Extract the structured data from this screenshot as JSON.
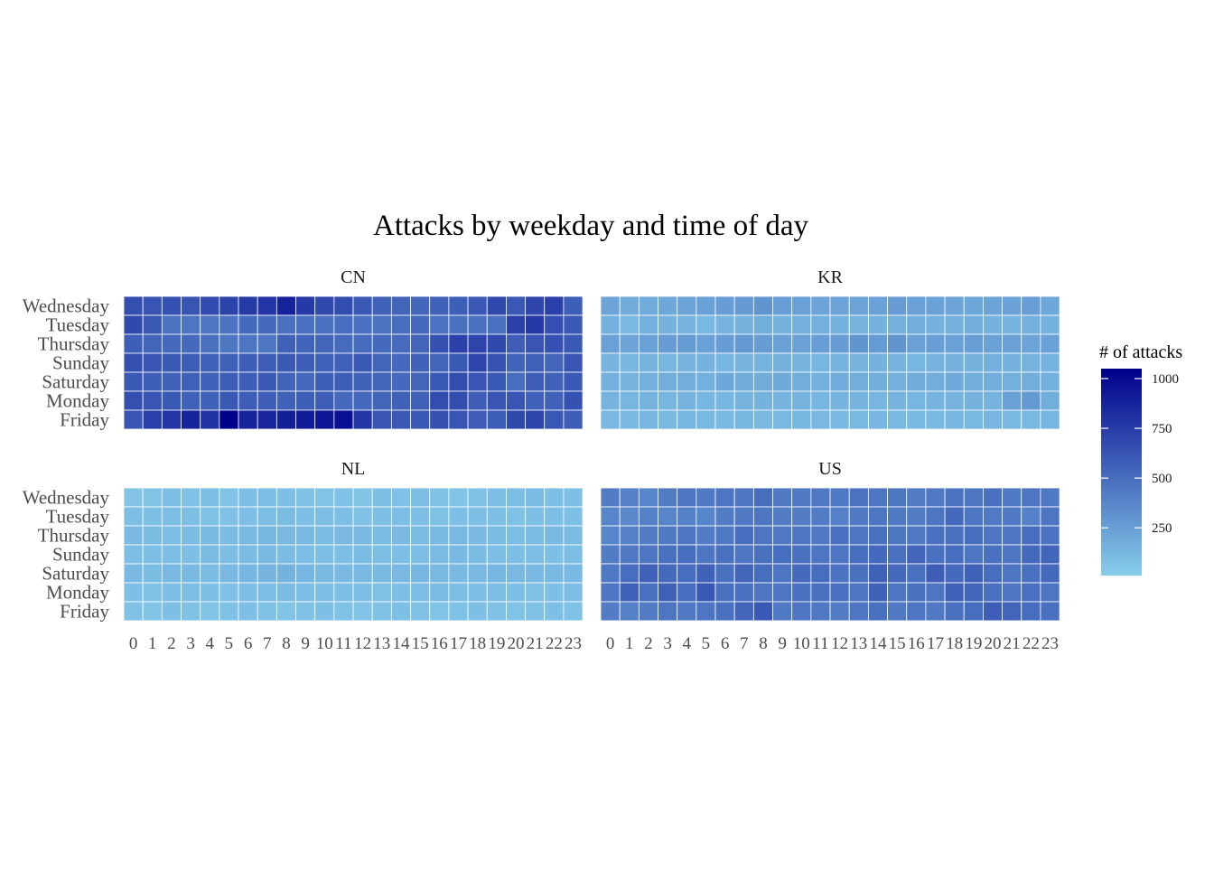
{
  "chart_data": {
    "type": "heatmap",
    "title": "Attacks by weekday and time of day",
    "x_labels": [
      "0",
      "1",
      "2",
      "3",
      "4",
      "5",
      "6",
      "7",
      "8",
      "9",
      "10",
      "11",
      "12",
      "13",
      "14",
      "15",
      "16",
      "17",
      "18",
      "19",
      "20",
      "21",
      "22",
      "23"
    ],
    "y_labels": [
      "Wednesday",
      "Tuesday",
      "Thursday",
      "Sunday",
      "Saturday",
      "Monday",
      "Friday"
    ],
    "legend": {
      "title": "# of attacks",
      "ticks": [
        250,
        500,
        750,
        1000
      ],
      "range": [
        10,
        1050
      ],
      "color_low": "#87ceeb",
      "color_high": "#00008b",
      "placement": "right"
    },
    "panels": [
      {
        "name": "CN",
        "values": [
          [
            650,
            620,
            640,
            620,
            670,
            710,
            750,
            780,
            880,
            760,
            680,
            660,
            600,
            560,
            540,
            530,
            560,
            570,
            600,
            680,
            600,
            690,
            720,
            570
          ],
          [
            680,
            600,
            470,
            460,
            460,
            470,
            520,
            520,
            480,
            480,
            490,
            500,
            480,
            470,
            500,
            520,
            470,
            480,
            480,
            490,
            720,
            760,
            650,
            600
          ],
          [
            570,
            540,
            520,
            520,
            480,
            450,
            460,
            460,
            560,
            550,
            540,
            510,
            510,
            520,
            510,
            540,
            640,
            720,
            700,
            680,
            580,
            620,
            640,
            600
          ],
          [
            650,
            620,
            600,
            580,
            560,
            560,
            580,
            580,
            600,
            580,
            560,
            560,
            600,
            540,
            520,
            560,
            540,
            600,
            700,
            630,
            550,
            560,
            540,
            620
          ],
          [
            600,
            570,
            560,
            560,
            560,
            580,
            580,
            600,
            550,
            520,
            570,
            580,
            560,
            540,
            520,
            540,
            600,
            660,
            620,
            600,
            500,
            580,
            560,
            600
          ],
          [
            650,
            620,
            600,
            560,
            560,
            600,
            580,
            580,
            560,
            570,
            580,
            520,
            520,
            540,
            560,
            560,
            660,
            660,
            580,
            620,
            620,
            560,
            560,
            640
          ],
          [
            620,
            730,
            780,
            870,
            790,
            1050,
            870,
            860,
            900,
            920,
            940,
            970,
            780,
            620,
            600,
            600,
            640,
            620,
            580,
            580,
            680,
            690,
            610,
            580
          ]
        ]
      },
      {
        "name": "KR",
        "values": [
          [
            220,
            180,
            180,
            200,
            220,
            240,
            260,
            280,
            300,
            250,
            240,
            220,
            220,
            220,
            230,
            260,
            240,
            230,
            220,
            210,
            220,
            230,
            250,
            200
          ],
          [
            160,
            120,
            160,
            150,
            140,
            120,
            140,
            150,
            170,
            150,
            160,
            160,
            150,
            140,
            150,
            160,
            170,
            150,
            160,
            170,
            150,
            140,
            160,
            150
          ],
          [
            240,
            220,
            240,
            260,
            270,
            230,
            260,
            280,
            260,
            240,
            230,
            250,
            260,
            300,
            270,
            300,
            240,
            250,
            240,
            250,
            230,
            240,
            220,
            230
          ],
          [
            140,
            130,
            140,
            130,
            140,
            150,
            130,
            140,
            140,
            150,
            140,
            130,
            140,
            140,
            150,
            140,
            130,
            140,
            150,
            150,
            160,
            150,
            140,
            140
          ],
          [
            160,
            140,
            160,
            170,
            170,
            160,
            200,
            180,
            180,
            190,
            170,
            160,
            180,
            170,
            170,
            160,
            180,
            170,
            190,
            170,
            170,
            160,
            170,
            160
          ],
          [
            140,
            130,
            140,
            130,
            140,
            130,
            130,
            140,
            150,
            140,
            140,
            130,
            140,
            140,
            130,
            140,
            130,
            140,
            140,
            150,
            140,
            240,
            280,
            170
          ],
          [
            120,
            110,
            130,
            120,
            130,
            120,
            120,
            130,
            120,
            120,
            130,
            120,
            110,
            120,
            130,
            120,
            110,
            120,
            130,
            120,
            130,
            120,
            120,
            130
          ]
        ]
      },
      {
        "name": "NL",
        "values": [
          [
            60,
            60,
            80,
            70,
            90,
            60,
            80,
            90,
            80,
            70,
            60,
            70,
            60,
            80,
            70,
            90,
            70,
            60,
            70,
            80,
            90,
            100,
            90,
            80
          ],
          [
            90,
            80,
            90,
            80,
            70,
            70,
            80,
            90,
            100,
            80,
            90,
            80,
            70,
            80,
            90,
            80,
            70,
            80,
            90,
            80,
            70,
            80,
            90,
            80
          ],
          [
            110,
            100,
            90,
            100,
            110,
            100,
            120,
            130,
            120,
            110,
            100,
            110,
            120,
            100,
            110,
            100,
            110,
            120,
            110,
            100,
            90,
            100,
            110,
            100
          ],
          [
            90,
            80,
            90,
            80,
            100,
            90,
            100,
            110,
            100,
            90,
            80,
            90,
            100,
            90,
            80,
            90,
            100,
            110,
            100,
            90,
            80,
            90,
            80,
            90
          ],
          [
            110,
            100,
            120,
            110,
            100,
            120,
            130,
            140,
            150,
            130,
            120,
            110,
            120,
            110,
            120,
            130,
            120,
            110,
            120,
            130,
            120,
            110,
            120,
            110
          ],
          [
            80,
            70,
            80,
            90,
            80,
            70,
            80,
            90,
            100,
            90,
            80,
            90,
            80,
            70,
            80,
            90,
            100,
            90,
            80,
            90,
            80,
            70,
            80,
            90
          ],
          [
            70,
            60,
            80,
            70,
            60,
            70,
            80,
            70,
            60,
            70,
            80,
            70,
            60,
            70,
            80,
            70,
            60,
            70,
            80,
            70,
            60,
            70,
            80,
            70
          ]
        ]
      },
      {
        "name": "US",
        "values": [
          [
            420,
            400,
            380,
            420,
            460,
            440,
            460,
            460,
            500,
            440,
            440,
            440,
            440,
            470,
            460,
            450,
            420,
            440,
            470,
            450,
            480,
            440,
            460,
            440
          ],
          [
            380,
            360,
            400,
            380,
            400,
            380,
            420,
            440,
            460,
            420,
            420,
            420,
            400,
            440,
            460,
            440,
            420,
            460,
            520,
            460,
            430,
            440,
            400,
            460
          ],
          [
            380,
            400,
            420,
            440,
            460,
            420,
            440,
            500,
            460,
            440,
            460,
            440,
            480,
            460,
            480,
            450,
            440,
            480,
            480,
            500,
            460,
            460,
            500,
            470
          ],
          [
            420,
            440,
            460,
            480,
            500,
            460,
            480,
            460,
            480,
            500,
            480,
            460,
            460,
            500,
            520,
            480,
            540,
            480,
            500,
            460,
            480,
            460,
            520,
            540
          ],
          [
            440,
            500,
            560,
            520,
            500,
            560,
            480,
            540,
            500,
            460,
            520,
            500,
            470,
            480,
            560,
            520,
            480,
            580,
            520,
            560,
            500,
            460,
            480,
            520
          ],
          [
            460,
            560,
            480,
            560,
            500,
            600,
            480,
            480,
            460,
            460,
            480,
            480,
            480,
            460,
            560,
            460,
            480,
            460,
            560,
            540,
            480,
            460,
            480,
            460
          ],
          [
            420,
            400,
            420,
            460,
            440,
            460,
            480,
            540,
            600,
            440,
            460,
            440,
            420,
            460,
            480,
            440,
            460,
            440,
            480,
            500,
            580,
            540,
            500,
            480
          ]
        ]
      }
    ]
  }
}
